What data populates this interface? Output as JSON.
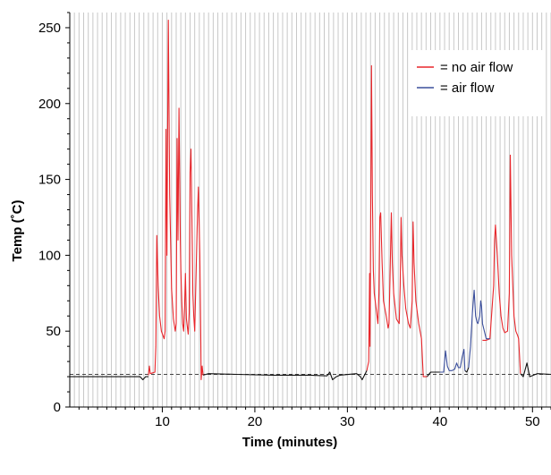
{
  "chart_data": {
    "type": "line",
    "title": "",
    "xlabel": "Time (minutes)",
    "ylabel": "Temp (˚C)",
    "xlim": [
      0,
      52
    ],
    "ylim": [
      0,
      260
    ],
    "x_ticks": [
      10,
      20,
      30,
      40,
      50
    ],
    "x_tick_labels": [
      "10",
      "20",
      "30",
      "40",
      "50"
    ],
    "y_ticks": [
      0,
      50,
      100,
      150,
      200,
      250
    ],
    "y_tick_labels": [
      "0",
      "50",
      "100",
      "150",
      "200",
      "250"
    ],
    "grid": "vertical minor lines every 0.5 min",
    "legend_position": "top-right",
    "colors": {
      "no_air_flow": "#e8262b",
      "air_flow": "#3a4e9c",
      "baseline": "#111111",
      "reference": "#444444",
      "grid": "#c8c8c8"
    },
    "reference_line": {
      "y": 21.5,
      "style": "dashed"
    },
    "legend": [
      {
        "label": "= no air flow",
        "color": "#e8262b"
      },
      {
        "label": "= air flow",
        "color": "#3a4e9c"
      }
    ],
    "series": [
      {
        "name": "baseline",
        "color": "#111111",
        "segments": [
          [
            [
              0,
              20
            ],
            [
              7.6,
              20
            ],
            [
              7.9,
              18
            ],
            [
              8.2,
              20
            ],
            [
              8.5,
              20
            ]
          ],
          [
            [
              14.4,
              21
            ],
            [
              15,
              22
            ],
            [
              18,
              21.5
            ],
            [
              22,
              21
            ],
            [
              26,
              21
            ],
            [
              27.8,
              20.5
            ],
            [
              28.1,
              23
            ],
            [
              28.4,
              18
            ],
            [
              28.8,
              20
            ],
            [
              29.2,
              21
            ],
            [
              31,
              22
            ],
            [
              31.4,
              20
            ],
            [
              31.6,
              18
            ],
            [
              32.1,
              24
            ]
          ],
          [
            [
              38.6,
              20
            ],
            [
              39,
              23
            ],
            [
              40,
              23
            ]
          ],
          [
            [
              42.7,
              24
            ],
            [
              42.9,
              23
            ],
            [
              43.1,
              26
            ]
          ],
          [
            [
              48.7,
              22
            ],
            [
              49,
              20
            ],
            [
              49.4,
              29
            ],
            [
              49.7,
              20
            ],
            [
              50.5,
              22
            ],
            [
              52,
              21.5
            ]
          ]
        ]
      },
      {
        "name": "no air flow",
        "color": "#e8262b",
        "segments": [
          [
            [
              8.5,
              21
            ],
            [
              8.6,
              27
            ],
            [
              8.7,
              22
            ],
            [
              9.2,
              23
            ],
            [
              9.3,
              40
            ],
            [
              9.4,
              113
            ],
            [
              9.55,
              80
            ],
            [
              9.7,
              60
            ],
            [
              9.9,
              50
            ],
            [
              10.2,
              45
            ],
            [
              10.3,
              50
            ],
            [
              10.4,
              183
            ],
            [
              10.5,
              100
            ],
            [
              10.55,
              160
            ],
            [
              10.65,
              255
            ],
            [
              10.8,
              140
            ],
            [
              11,
              78
            ],
            [
              11.2,
              58
            ],
            [
              11.4,
              50
            ],
            [
              11.5,
              55
            ],
            [
              11.6,
              177
            ],
            [
              11.7,
              110
            ],
            [
              11.8,
              197
            ],
            [
              11.95,
              110
            ],
            [
              12,
              90
            ],
            [
              12.1,
              70
            ],
            [
              12.2,
              55
            ],
            [
              12.3,
              50
            ],
            [
              12.4,
              65
            ],
            [
              12.5,
              88
            ],
            [
              12.6,
              58
            ],
            [
              12.8,
              48
            ],
            [
              12.9,
              62
            ],
            [
              13,
              155
            ],
            [
              13.1,
              170
            ],
            [
              13.25,
              100
            ],
            [
              13.3,
              75
            ],
            [
              13.4,
              60
            ],
            [
              13.5,
              50
            ],
            [
              13.6,
              75
            ],
            [
              13.8,
              127
            ],
            [
              13.9,
              145
            ],
            [
              14.05,
              100
            ],
            [
              14.15,
              50
            ],
            [
              14.2,
              18
            ],
            [
              14.3,
              27
            ],
            [
              14.4,
              21
            ]
          ],
          [
            [
              32.1,
              24
            ],
            [
              32.3,
              30
            ],
            [
              32.4,
              88
            ],
            [
              32.45,
              40
            ],
            [
              32.6,
              225
            ],
            [
              32.7,
              140
            ],
            [
              32.8,
              90
            ],
            [
              32.9,
              75
            ],
            [
              33.1,
              65
            ],
            [
              33.3,
              55
            ],
            [
              33.4,
              75
            ],
            [
              33.5,
              125
            ],
            [
              33.6,
              128
            ],
            [
              33.75,
              95
            ],
            [
              33.9,
              70
            ],
            [
              34.2,
              60
            ],
            [
              34.4,
              52
            ],
            [
              34.5,
              55
            ],
            [
              34.6,
              85
            ],
            [
              34.75,
              128
            ],
            [
              34.85,
              95
            ],
            [
              35,
              75
            ],
            [
              35.3,
              58
            ],
            [
              35.6,
              55
            ],
            [
              35.7,
              80
            ],
            [
              35.8,
              125
            ],
            [
              35.9,
              100
            ],
            [
              36.1,
              80
            ],
            [
              36.3,
              65
            ],
            [
              36.6,
              55
            ],
            [
              36.8,
              52
            ],
            [
              37,
              70
            ],
            [
              37.1,
              122
            ],
            [
              37.2,
              95
            ],
            [
              37.4,
              70
            ],
            [
              37.7,
              55
            ],
            [
              38,
              45
            ],
            [
              38.2,
              20
            ],
            [
              38.6,
              20
            ]
          ],
          [
            [
              44.6,
              44
            ],
            [
              45,
              44
            ],
            [
              45.4,
              45
            ],
            [
              45.8,
              80
            ],
            [
              45.9,
              110
            ],
            [
              46,
              120
            ],
            [
              46.2,
              100
            ],
            [
              46.4,
              75
            ],
            [
              46.6,
              60
            ],
            [
              46.8,
              52
            ],
            [
              47,
              49
            ],
            [
              47.3,
              50
            ],
            [
              47.5,
              75
            ],
            [
              47.6,
              166
            ],
            [
              47.75,
              100
            ],
            [
              48,
              60
            ],
            [
              48.2,
              50
            ],
            [
              48.4,
              47
            ],
            [
              48.5,
              45
            ],
            [
              48.7,
              22
            ]
          ]
        ]
      },
      {
        "name": "air flow",
        "color": "#3a4e9c",
        "segments": [
          [
            [
              40,
              23
            ],
            [
              40.4,
              23
            ],
            [
              40.5,
              30
            ],
            [
              40.6,
              37
            ],
            [
              40.8,
              27
            ],
            [
              41,
              24
            ],
            [
              41.3,
              24
            ],
            [
              41.6,
              25
            ],
            [
              41.8,
              29
            ],
            [
              42,
              26
            ],
            [
              42.2,
              26
            ],
            [
              42.4,
              33
            ],
            [
              42.6,
              38
            ],
            [
              42.7,
              24
            ]
          ],
          [
            [
              43.1,
              26
            ],
            [
              43.3,
              40
            ],
            [
              43.5,
              62
            ],
            [
              43.7,
              77
            ],
            [
              43.85,
              60
            ],
            [
              44,
              56
            ],
            [
              44.1,
              55
            ],
            [
              44.3,
              60
            ],
            [
              44.4,
              70
            ],
            [
              44.5,
              66
            ],
            [
              44.6,
              55
            ],
            [
              44.8,
              50
            ],
            [
              45,
              45
            ],
            [
              45.4,
              45
            ]
          ]
        ]
      }
    ]
  }
}
